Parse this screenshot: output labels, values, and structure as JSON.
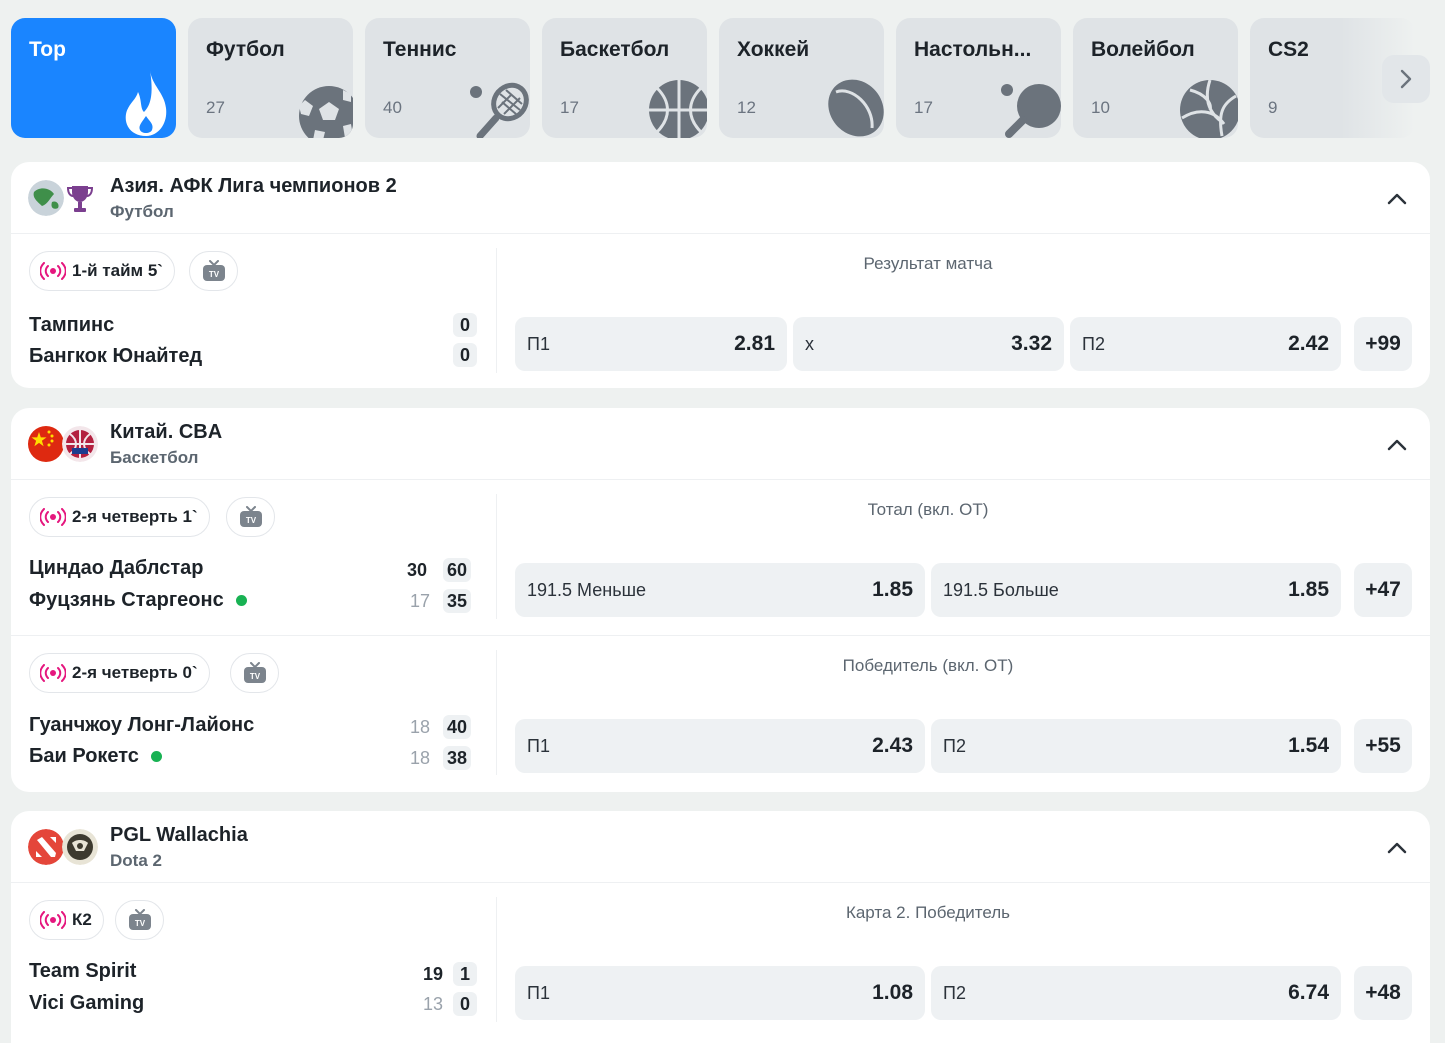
{
  "sports": [
    {
      "name": "Top",
      "count": "",
      "icon": "flame-icon"
    },
    {
      "name": "Футбол",
      "count": "27",
      "icon": "soccer-ball-icon"
    },
    {
      "name": "Теннис",
      "count": "40",
      "icon": "tennis-racket-icon"
    },
    {
      "name": "Баскетбол",
      "count": "17",
      "icon": "basketball-icon"
    },
    {
      "name": "Хоккей",
      "count": "12",
      "icon": "hockey-puck-icon"
    },
    {
      "name": "Настольн...",
      "count": "17",
      "icon": "ping-pong-paddle-icon"
    },
    {
      "name": "Волейбол",
      "count": "10",
      "icon": "volleyball-icon"
    },
    {
      "name": "CS2",
      "count": "9",
      "icon": "cs2-icon"
    }
  ],
  "leagues": [
    {
      "name": "Азия. АФК Лига чемпионов 2",
      "sport": "Футбол",
      "events": [
        {
          "status": "1-й тайм 5`",
          "team1": "Тампинс",
          "team2": "Бангкок Юнайтед",
          "score1": "0",
          "score2": "0",
          "market": "Результат матча",
          "odds": [
            {
              "label": "П1",
              "value": "2.81"
            },
            {
              "label": "x",
              "value": "3.32"
            },
            {
              "label": "П2",
              "value": "2.42"
            }
          ],
          "more": "+99"
        }
      ]
    },
    {
      "name": "Китай. CBA",
      "sport": "Баскетбол",
      "events": [
        {
          "status": "2-я четверть 1`",
          "team1": "Циндао Даблстар",
          "team2": "Фуцзянь Старгеонс",
          "period1": "30",
          "period2": "17",
          "score1": "60",
          "score2": "35",
          "market": "Тотал (вкл. ОТ)",
          "odds": [
            {
              "label": "191.5 Меньше",
              "value": "1.85"
            },
            {
              "label": "191.5 Больше",
              "value": "1.85"
            }
          ],
          "more": "+47"
        },
        {
          "status": "2-я четверть 0`",
          "team1": "Гуанчжоу Лонг-Лайонс",
          "team2": "Баи Рокетс",
          "period1": "18",
          "period2": "18",
          "score1": "40",
          "score2": "38",
          "market": "Победитель (вкл. ОТ)",
          "odds": [
            {
              "label": "П1",
              "value": "2.43"
            },
            {
              "label": "П2",
              "value": "1.54"
            }
          ],
          "more": "+55"
        }
      ]
    },
    {
      "name": "PGL Wallachia",
      "sport": "Dota 2",
      "events": [
        {
          "status": "К2",
          "team1": "Team Spirit",
          "team2": "Vici Gaming",
          "period1": "19",
          "period2": "13",
          "score1": "1",
          "score2": "0",
          "market": "Карта 2. Победитель",
          "odds": [
            {
              "label": "П1",
              "value": "1.08"
            },
            {
              "label": "П2",
              "value": "6.74"
            }
          ],
          "more": "+48"
        }
      ]
    }
  ],
  "colors": {
    "accent": "#1a85ff",
    "live": "#e5177e",
    "serve": "#18b253"
  }
}
